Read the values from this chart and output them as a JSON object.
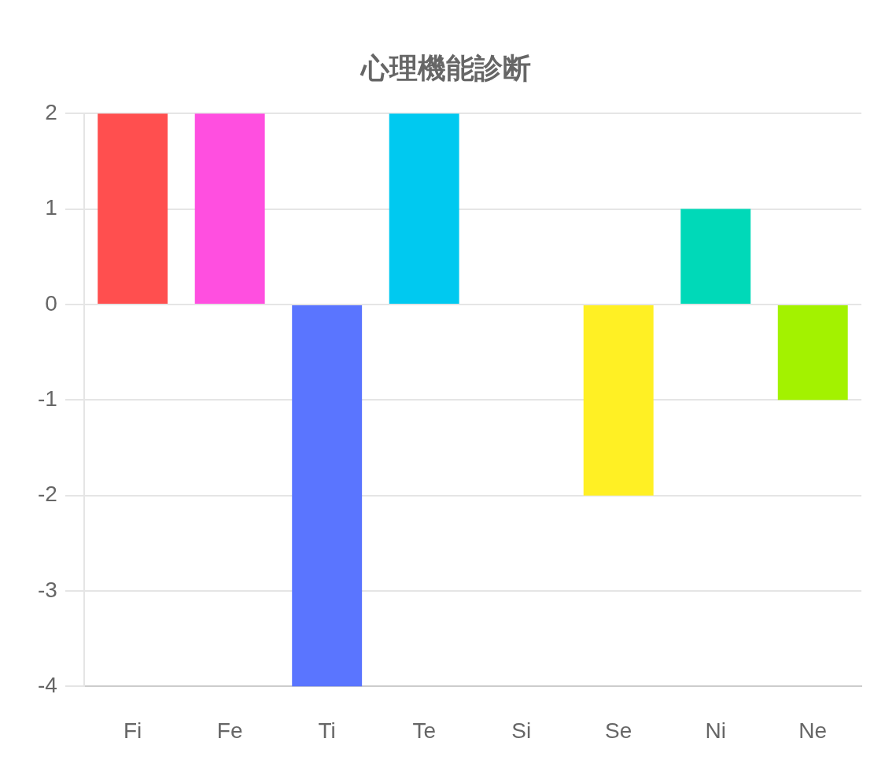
{
  "chart_data": {
    "type": "bar",
    "title": "心理機能診断",
    "categories": [
      "Fi",
      "Fe",
      "Ti",
      "Te",
      "Si",
      "Se",
      "Ni",
      "Ne"
    ],
    "values": [
      2,
      2,
      -4,
      2,
      0,
      -2,
      1,
      -1
    ],
    "colors": [
      "#ff4f4f",
      "#ff4fe0",
      "#5a75ff",
      "#00c9f0",
      null,
      "#fff024",
      "#00d9b8",
      "#a3f200"
    ],
    "ylim": [
      -4,
      2
    ],
    "yticks": [
      -4,
      -3,
      -2,
      -1,
      0,
      1,
      2
    ],
    "grid": "y"
  }
}
